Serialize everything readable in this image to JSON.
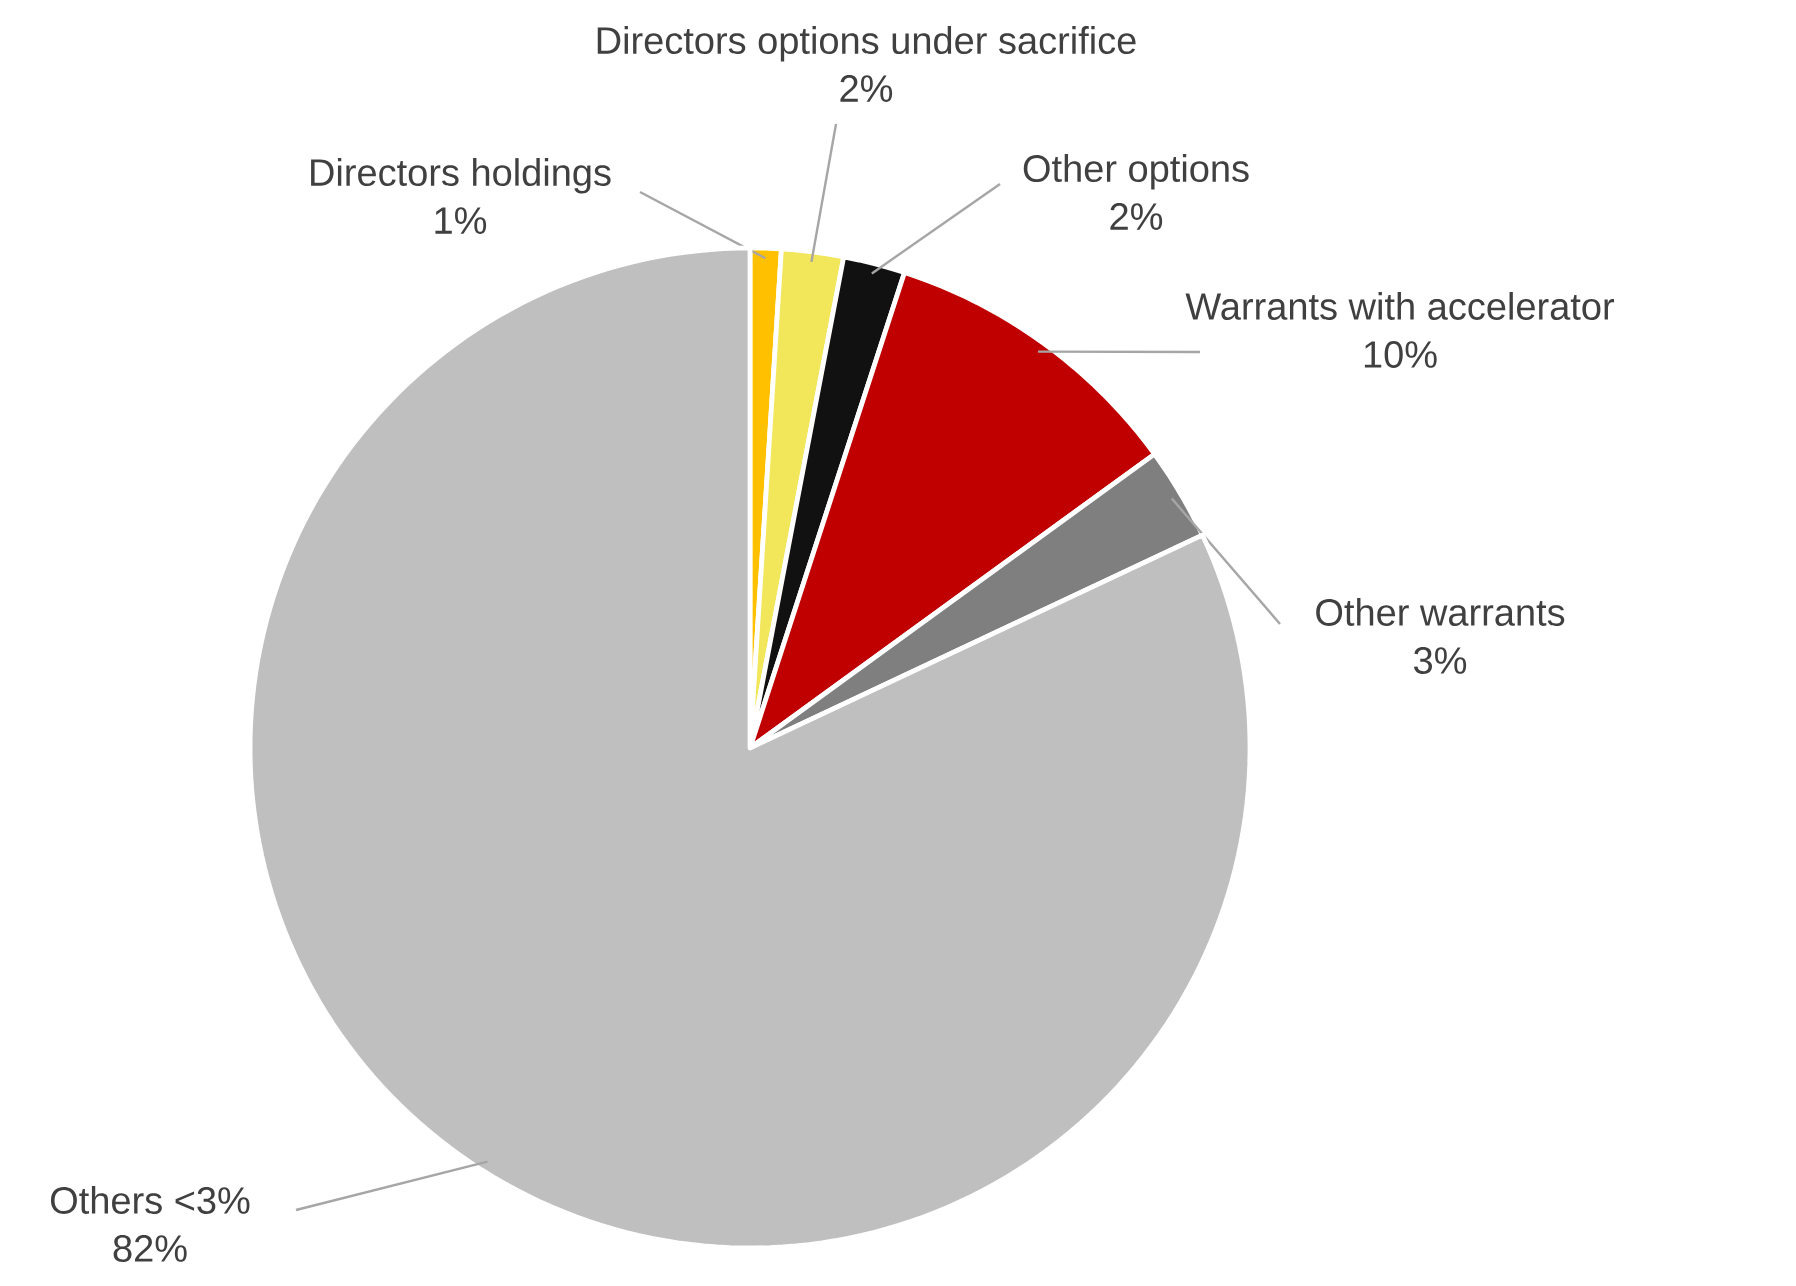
{
  "chart_data": {
    "type": "pie",
    "categories": [
      "Directors holdings",
      "Directors options under sacrifice",
      "Other options",
      "Warrants with accelerator",
      "Other warrants",
      "Others <3%"
    ],
    "values": [
      1,
      2,
      2,
      10,
      3,
      82
    ],
    "value_labels": [
      "1%",
      "2%",
      "2%",
      "10%",
      "3%",
      "82%"
    ],
    "colors": [
      "#ffc000",
      "#f2e65a",
      "#111111",
      "#c00000",
      "#7f7f7f",
      "#bfbfbf"
    ]
  }
}
